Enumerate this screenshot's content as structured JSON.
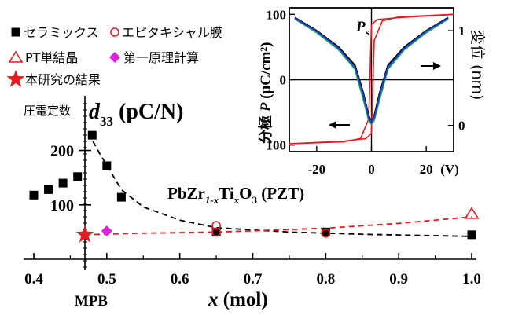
{
  "chart_data": [
    {
      "type": "scatter",
      "title": "",
      "x_axis": {
        "label_var": "x",
        "label_unit": " (mol)",
        "min": 0.4,
        "max": 1.0,
        "ticks": [
          {
            "v": 0.4,
            "t": "0.4"
          },
          {
            "v": 0.5,
            "t": "0.5"
          },
          {
            "v": 0.6,
            "t": "0.6"
          },
          {
            "v": 0.7,
            "t": "0.7"
          },
          {
            "v": 0.8,
            "t": "0.8"
          },
          {
            "v": 0.9,
            "t": "0.9"
          },
          {
            "v": 1.0,
            "t": "1.0"
          }
        ]
      },
      "y_axis": {
        "label_prefix": "圧電定数",
        "label_var": "d",
        "label_sub": "33",
        "label_unit": " (pC/N)",
        "min": 0,
        "max": 260,
        "ticks": [
          {
            "v": 100,
            "t": "100"
          },
          {
            "v": 200,
            "t": "200"
          }
        ]
      },
      "mpb": {
        "x": 0.47,
        "label": "MPB"
      },
      "formula": {
        "a": "PbZr",
        "a_sub": "1-x",
        "b": "Ti",
        "b_sub": "x",
        "c": "O",
        "c_sub": "3",
        "d": " (PZT)"
      },
      "legend": [
        {
          "name": "セラミックス",
          "marker": "square",
          "color": "#000000"
        },
        {
          "name": "エピタキシャル膜",
          "marker": "circle",
          "color": "#e8191f"
        },
        {
          "name": "PT単結晶",
          "marker": "triangle",
          "color": "#e8191f"
        },
        {
          "name": "第一原理計算",
          "marker": "diamond",
          "color": "#e020e0"
        },
        {
          "name": "本研究の結果",
          "marker": "star",
          "color": "#e8191f"
        }
      ],
      "series": [
        {
          "name": "セラミックス",
          "marker": "square",
          "color": "#000000",
          "points": [
            [
              0.4,
              118
            ],
            [
              0.42,
              128
            ],
            [
              0.44,
              140
            ],
            [
              0.46,
              152
            ],
            [
              0.48,
              228
            ],
            [
              0.5,
              172
            ],
            [
              0.52,
              114
            ],
            [
              0.65,
              50
            ],
            [
              0.8,
              50
            ],
            [
              1.0,
              45
            ]
          ]
        },
        {
          "name": "エピタキシャル膜",
          "marker": "circle",
          "color": "#e8191f",
          "points": [
            [
              0.65,
              62
            ],
            [
              0.65,
              50
            ],
            [
              0.8,
              48
            ]
          ]
        },
        {
          "name": "PT単結晶",
          "marker": "triangle",
          "color": "#e8191f",
          "points": [
            [
              1.0,
              84
            ]
          ]
        },
        {
          "name": "第一原理計算",
          "marker": "diamond",
          "color": "#e020e0",
          "points": [
            [
              0.5,
              52
            ]
          ]
        },
        {
          "name": "本研究の結果",
          "marker": "star",
          "color": "#e8191f",
          "points": [
            [
              0.47,
              45
            ]
          ]
        }
      ],
      "trend_lines": [
        {
          "style": "dashed",
          "color": "#000000",
          "points": [
            [
              0.475,
              232
            ],
            [
              0.49,
              195
            ],
            [
              0.52,
              128
            ],
            [
              0.55,
              96
            ],
            [
              0.6,
              72
            ],
            [
              0.65,
              58
            ],
            [
              0.75,
              50
            ],
            [
              0.85,
              46
            ],
            [
              1.0,
              42
            ]
          ]
        },
        {
          "style": "dashed",
          "color": "#e8191f",
          "points": [
            [
              0.47,
              45
            ],
            [
              0.55,
              48
            ],
            [
              0.65,
              50
            ],
            [
              0.8,
              57
            ],
            [
              0.9,
              66
            ],
            [
              1.0,
              78
            ]
          ]
        }
      ]
    },
    {
      "type": "line",
      "title": "",
      "x_axis": {
        "min": -30,
        "max": 30,
        "ticks": [
          {
            "v": -20,
            "t": "-20"
          },
          {
            "v": 0,
            "t": "0"
          },
          {
            "v": 20,
            "t": "20"
          }
        ],
        "unit": "(V)"
      },
      "y_axis_left": {
        "label_name": "分極",
        "label_var": "P",
        "label_unit": "(μC/cm²)",
        "min": -110,
        "max": 110,
        "ticks": [
          {
            "v": 100,
            "t": "100"
          },
          {
            "v": 0,
            "t": "0"
          },
          {
            "v": -100,
            "t": "100"
          }
        ]
      },
      "y_axis_right": {
        "label": "変位 (nm)",
        "ticks": [
          {
            "v": 75,
            "t": "1"
          },
          {
            "v": -70,
            "t": "0"
          }
        ]
      },
      "annotation": {
        "var": "P",
        "sub": "s"
      },
      "series": [
        {
          "name": "P-E hysteresis",
          "color": "#e8191f",
          "upper": [
            [
              -30,
              -98
            ],
            [
              -10,
              -94
            ],
            [
              -2,
              -90
            ],
            [
              0,
              -82
            ],
            [
              1,
              60
            ],
            [
              4,
              90
            ],
            [
              10,
              96
            ],
            [
              30,
              100
            ]
          ],
          "lower": [
            [
              30,
              100
            ],
            [
              10,
              95
            ],
            [
              2,
              92
            ],
            [
              0,
              84
            ],
            [
              -1,
              -60
            ],
            [
              -4,
              -90
            ],
            [
              -10,
              -95
            ],
            [
              -30,
              -98
            ]
          ]
        },
        {
          "name": "Displacement (black)",
          "color": "#000000",
          "points": [
            [
              -28,
              95
            ],
            [
              -20,
              75
            ],
            [
              -12,
              50
            ],
            [
              -6,
              22
            ],
            [
              -3,
              -20
            ],
            [
              -1,
              -55
            ],
            [
              0,
              -65
            ],
            [
              1,
              -55
            ],
            [
              3,
              -20
            ],
            [
              6,
              22
            ],
            [
              12,
              50
            ],
            [
              20,
              75
            ],
            [
              28,
              95
            ]
          ]
        },
        {
          "name": "Displacement (green)",
          "color": "#21b24b",
          "points": [
            [
              -28,
              93
            ],
            [
              -20,
              72
            ],
            [
              -12,
              46
            ],
            [
              -6,
              16
            ],
            [
              -3,
              -30
            ],
            [
              -1,
              -62
            ],
            [
              0,
              -68
            ],
            [
              1,
              -62
            ],
            [
              3,
              -30
            ],
            [
              6,
              16
            ],
            [
              12,
              46
            ],
            [
              20,
              72
            ],
            [
              28,
              93
            ]
          ]
        },
        {
          "name": "Displacement (blue)",
          "color": "#1f3fd0",
          "points": [
            [
              -28,
              94
            ],
            [
              -20,
              74
            ],
            [
              -12,
              48
            ],
            [
              -6,
              19
            ],
            [
              -3,
              -24
            ],
            [
              -1,
              -58
            ],
            [
              0,
              -66
            ],
            [
              1,
              -58
            ],
            [
              3,
              -24
            ],
            [
              6,
              19
            ],
            [
              12,
              48
            ],
            [
              20,
              74
            ],
            [
              28,
              94
            ]
          ]
        }
      ]
    }
  ]
}
